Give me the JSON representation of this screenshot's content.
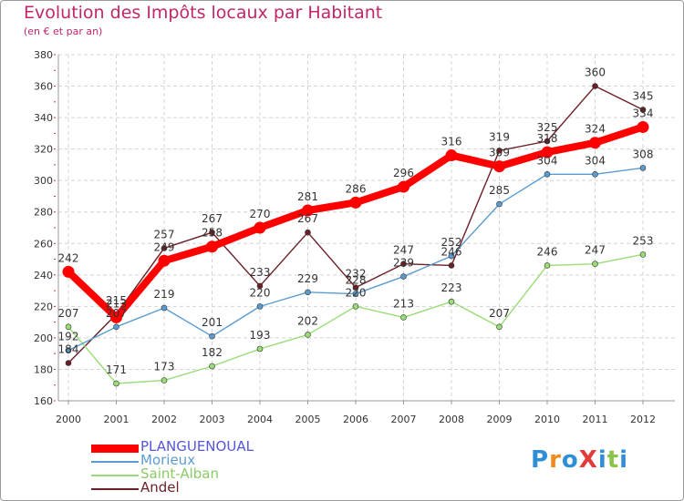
{
  "chart_data": {
    "type": "line",
    "title": "Evolution des Impôts locaux par Habitant",
    "subtitle": "(en € et par an)",
    "xlabel": "",
    "ylabel": "",
    "ylim": [
      160,
      380
    ],
    "yticks": [
      160,
      180,
      200,
      220,
      240,
      260,
      280,
      300,
      320,
      340,
      360,
      380
    ],
    "categories": [
      "2000",
      "2001",
      "2002",
      "2003",
      "2004",
      "2005",
      "2006",
      "2007",
      "2008",
      "2009",
      "2010",
      "2011",
      "2012"
    ],
    "series": [
      {
        "name": "Andel",
        "color": "#6b1f27",
        "values": [
          184,
          215,
          257,
          267,
          233,
          267,
          232,
          247,
          246,
          319,
          325,
          360,
          345
        ]
      },
      {
        "name": "Saint-Alban",
        "color": "#99dd77",
        "values": [
          207,
          171,
          173,
          182,
          193,
          202,
          220,
          213,
          223,
          207,
          246,
          247,
          253
        ]
      },
      {
        "name": "Morieux",
        "color": "#5b9cd0",
        "values": [
          192,
          207,
          219,
          201,
          220,
          229,
          228,
          239,
          252,
          285,
          304,
          304,
          308
        ]
      },
      {
        "name": "PLANGUENOUAL",
        "color": "#ff0000",
        "values": [
          242,
          213,
          249,
          258,
          270,
          281,
          286,
          296,
          316,
          309,
          318,
          324,
          334
        ]
      }
    ],
    "grid": true,
    "legend_position": "bottom-left"
  },
  "legend": [
    {
      "name": "PLANGUENOUAL",
      "color": "#ff0000",
      "text_color": "#5555dd"
    },
    {
      "name": "Morieux",
      "color": "#5b9cd0",
      "text_color": "#5b9cd0"
    },
    {
      "name": "Saint-Alban",
      "color": "#99dd77",
      "text_color": "#88cc66"
    },
    {
      "name": "Andel",
      "color": "#6b1f27",
      "text_color": "#6b1f27"
    }
  ],
  "logo": {
    "text": "ProXiti",
    "letters": [
      "P",
      "r",
      "o",
      "X",
      "i",
      "t",
      "i"
    ],
    "colors": [
      "#2f8fd6",
      "#f08a1c",
      "#2f8fd6",
      "#e23b3b",
      "#2f8fd6",
      "#8bc34a",
      "#2f8fd6"
    ]
  }
}
